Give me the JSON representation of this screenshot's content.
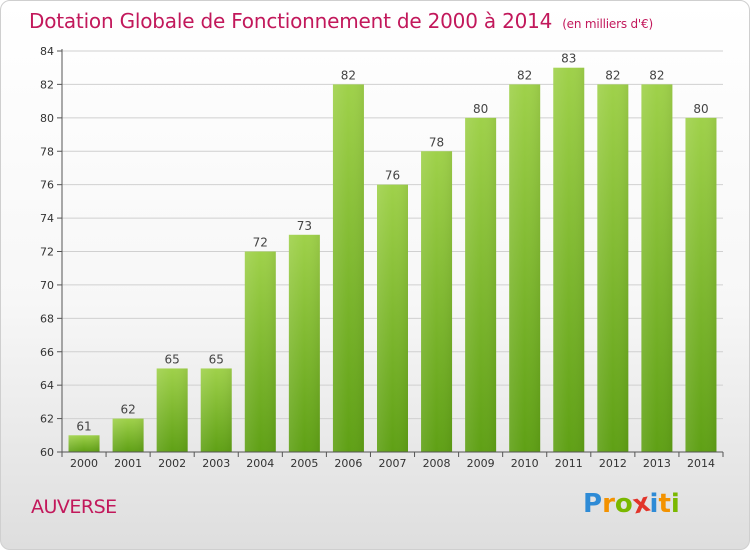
{
  "title": "Dotation Globale de Fonctionnement de 2000 à 2014",
  "subtitle": "(en milliers d'€)",
  "place": "AUVERSE",
  "logo": {
    "letters": [
      "P",
      "r",
      "o",
      "x",
      "i",
      "t",
      "i"
    ],
    "colors": [
      "#2e8bd6",
      "#f39200",
      "#7ab800",
      "#e2342a",
      "#2e8bd6",
      "#f39200",
      "#7ab800"
    ]
  },
  "colors": {
    "title": "#c2185b",
    "bar_top": "#9fd14a",
    "bar_bottom": "#5fa015",
    "grid": "#d0d0d0",
    "axis": "#555555"
  },
  "chart_data": {
    "type": "bar",
    "categories": [
      "2000",
      "2001",
      "2002",
      "2003",
      "2004",
      "2005",
      "2006",
      "2007",
      "2008",
      "2009",
      "2010",
      "2011",
      "2012",
      "2013",
      "2014"
    ],
    "values": [
      61,
      62,
      65,
      65,
      72,
      73,
      82,
      76,
      78,
      80,
      82,
      83,
      82,
      82,
      80
    ],
    "ylim": [
      60,
      84
    ],
    "yticks": [
      60,
      62,
      64,
      66,
      68,
      70,
      72,
      74,
      76,
      78,
      80,
      82,
      84
    ],
    "grid": true,
    "legend": "none"
  }
}
